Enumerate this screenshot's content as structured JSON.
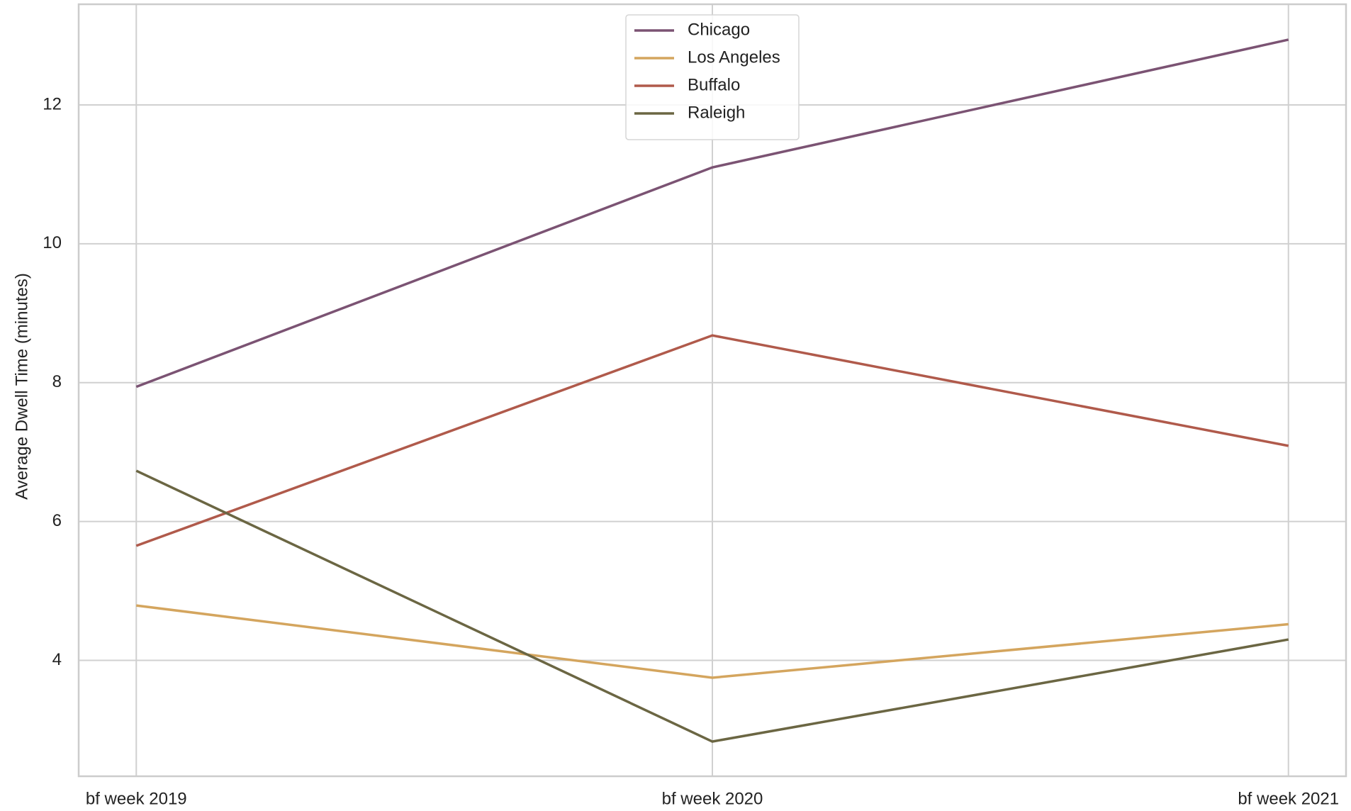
{
  "chart_data": {
    "type": "line",
    "y_label": "Average Dwell Time (minutes)",
    "categories": [
      "bf week 2019",
      "bf week 2020",
      "bf week 2021"
    ],
    "series": [
      {
        "name": "Chicago",
        "color": "#7b5373",
        "values": [
          7.94,
          11.1,
          12.94
        ]
      },
      {
        "name": "Los Angeles",
        "color": "#d4a55e",
        "values": [
          4.79,
          3.75,
          4.52
        ]
      },
      {
        "name": "Buffalo",
        "color": "#b05a4b",
        "values": [
          5.65,
          8.68,
          7.09
        ]
      },
      {
        "name": "Raleigh",
        "color": "#6b6643",
        "values": [
          6.73,
          2.83,
          4.3
        ]
      }
    ],
    "ylim": [
      2.33,
      13.45
    ],
    "yticks": [
      4,
      6,
      8,
      10,
      12
    ],
    "grid": true,
    "legend": "upper center"
  }
}
